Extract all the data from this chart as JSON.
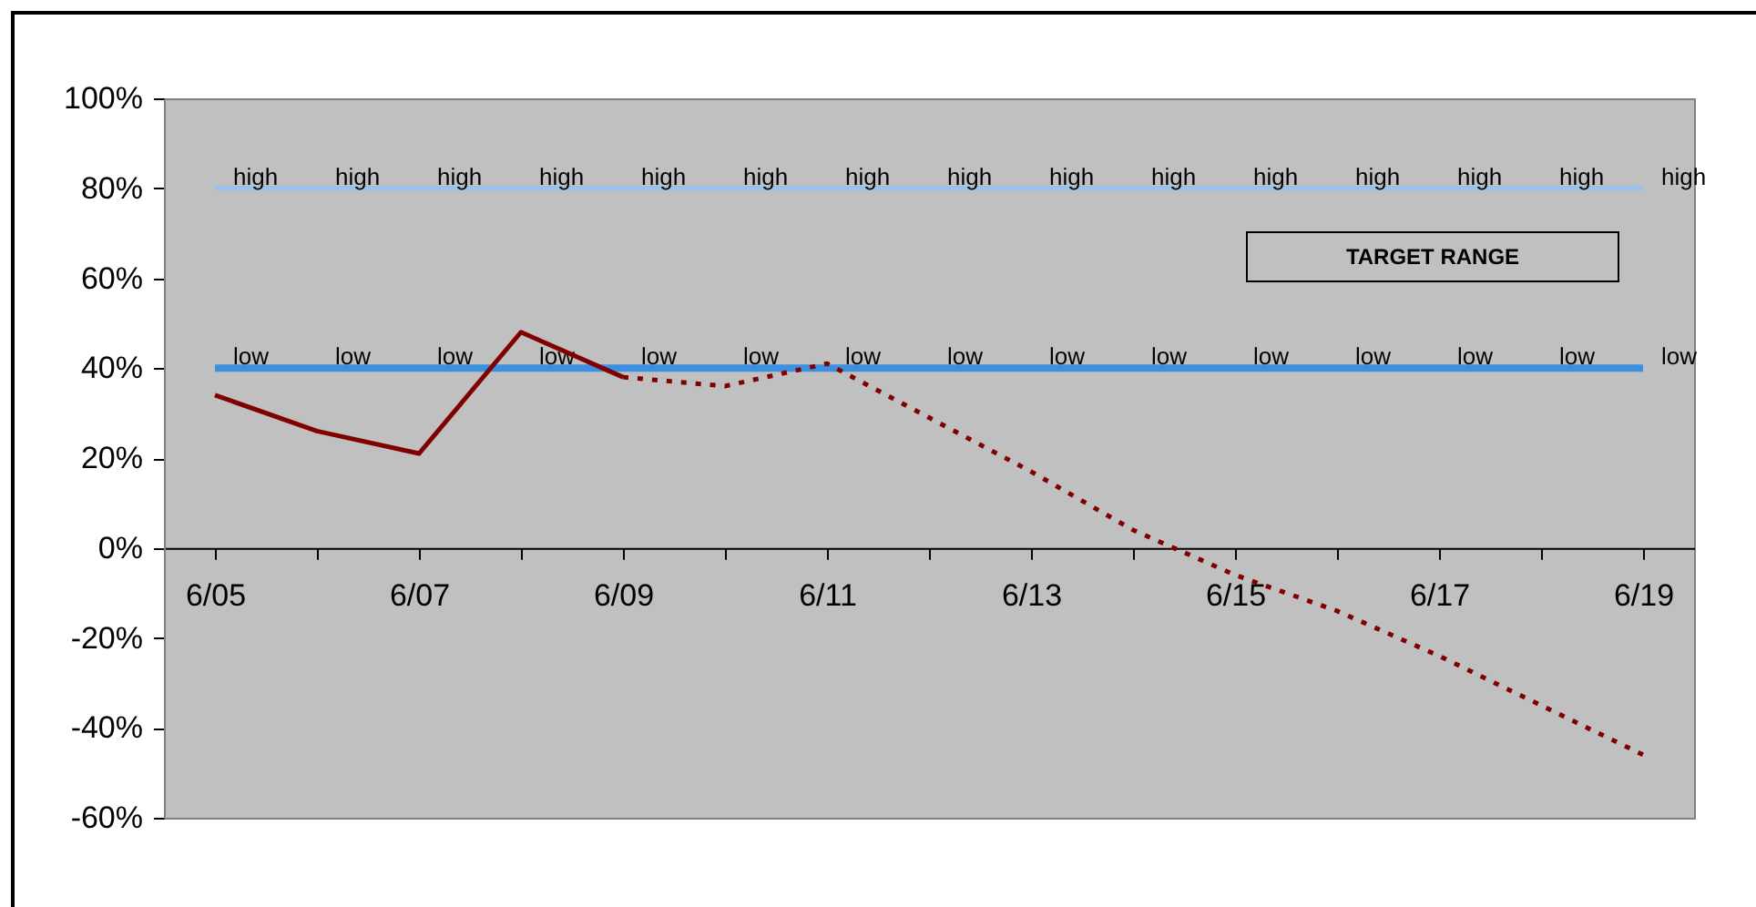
{
  "chart_data": {
    "type": "line",
    "categories": [
      "6/05",
      null,
      "6/07",
      null,
      "6/09",
      null,
      "6/11",
      null,
      "6/13",
      null,
      "6/15",
      null,
      "6/17",
      null,
      "6/19"
    ],
    "series": [
      {
        "color": "#99c2ee",
        "values": [
          80,
          80,
          80,
          80,
          80,
          80,
          80,
          80,
          80,
          80,
          80,
          80,
          80,
          80,
          80
        ],
        "value_labels": [
          "high",
          "high",
          "high",
          "high",
          "high",
          "high",
          "high",
          "high",
          "high",
          "high",
          "high",
          "high",
          "high",
          "high",
          "high"
        ],
        "line_style": "solid"
      },
      {
        "color": "#3d8fe0",
        "values": [
          40,
          40,
          40,
          40,
          40,
          40,
          40,
          40,
          40,
          40,
          40,
          40,
          40,
          40,
          40
        ],
        "value_labels": [
          "low",
          "low",
          "low",
          "low",
          "low",
          "low",
          "low",
          "low",
          "low",
          "low",
          "low",
          "low",
          "low",
          "low",
          "low"
        ],
        "line_style": "solid"
      },
      {
        "color": "#800000",
        "values": [
          34,
          26,
          21,
          48,
          38,
          null,
          null,
          null,
          null,
          null,
          null,
          null,
          null,
          null,
          null
        ],
        "line_style": "solid"
      },
      {
        "color": "#800000",
        "values": [
          null,
          null,
          null,
          null,
          38,
          36,
          41,
          29,
          17,
          4,
          -6,
          -14,
          -24,
          -35,
          -46
        ],
        "line_style": "dotted"
      }
    ],
    "ylim": [
      -60,
      100
    ],
    "yticks": [
      {
        "value": -60,
        "label": "-60%"
      },
      {
        "value": -40,
        "label": "-40%"
      },
      {
        "value": -20,
        "label": "-20%"
      },
      {
        "value": 0,
        "label": "0%"
      },
      {
        "value": 20,
        "label": "20%"
      },
      {
        "value": 40,
        "label": "40%"
      },
      {
        "value": 60,
        "label": "60%"
      },
      {
        "value": 80,
        "label": "80%"
      },
      {
        "value": 100,
        "label": "100%"
      }
    ],
    "grid": false,
    "annotations": [
      "TARGET RANGE"
    ]
  }
}
